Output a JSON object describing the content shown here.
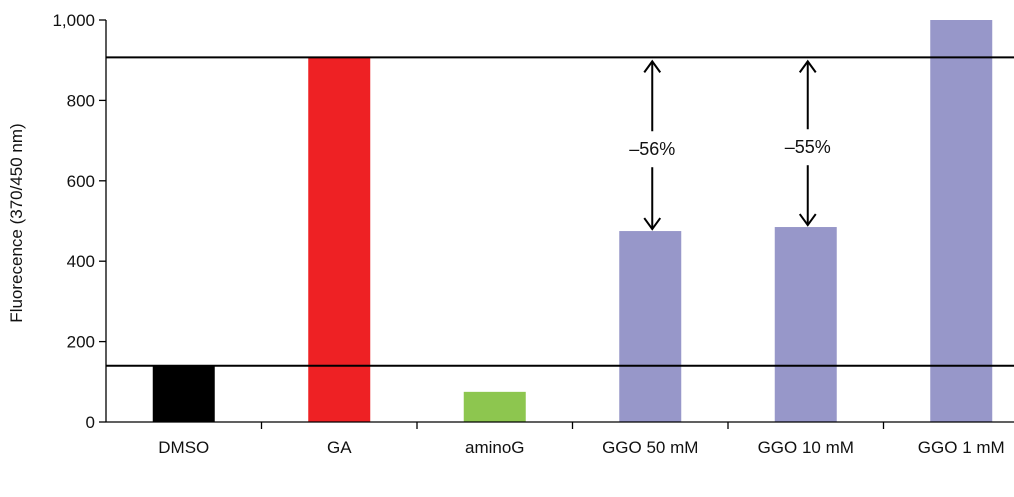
{
  "chart_data": {
    "type": "bar",
    "title": "",
    "xlabel": "",
    "ylabel": "Fluorecence (370/450 nm)",
    "ylim": [
      0,
      1000
    ],
    "yticks": [
      0,
      200,
      400,
      600,
      800,
      1000
    ],
    "ytick_labels": [
      "0",
      "200",
      "400",
      "600",
      "800",
      "1,000"
    ],
    "categories": [
      "DMSO",
      "GA",
      "aminoG",
      "GGO 50 mM",
      "GGO 10 mM",
      "GGO 1 mM"
    ],
    "values": [
      140,
      907,
      75,
      475,
      485,
      1000
    ],
    "colors": [
      "#000000",
      "#ee2124",
      "#8dc64f",
      "#9797c9",
      "#9797c9",
      "#9797c9"
    ],
    "reference_lines": [
      907,
      140
    ],
    "annotations": [
      {
        "category": "GGO 50 mM",
        "text": "–56%",
        "from": 907,
        "to": 475
      },
      {
        "category": "GGO 10 mM",
        "text": "–55%",
        "from": 907,
        "to": 485
      }
    ],
    "grid": false,
    "legend": "none"
  }
}
